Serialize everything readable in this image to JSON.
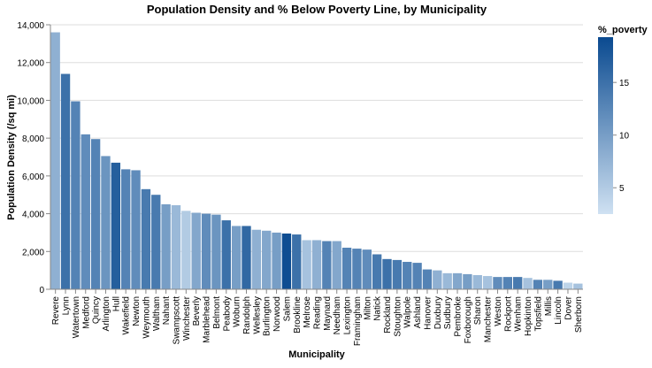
{
  "chart_data": {
    "type": "bar",
    "title": "Population Density and % Below Poverty Line, by Municipality",
    "xlabel": "Municipality",
    "ylabel": "Population Density (/sq mi)",
    "ylim": [
      0,
      14000
    ],
    "yticks": [
      0,
      2000,
      4000,
      6000,
      8000,
      10000,
      12000,
      14000
    ],
    "ytick_labels": [
      "0",
      "2,000",
      "4,000",
      "6,000",
      "8,000",
      "10,000",
      "12,000",
      "14,000"
    ],
    "grid": true,
    "legend": {
      "title": "%_poverty",
      "placement": "top-right",
      "type": "gradient",
      "domain": [
        2.5,
        19.3
      ],
      "ticks": [
        5,
        10,
        15
      ],
      "tick_labels": [
        "5",
        "10",
        "15"
      ],
      "color_low": "#cfe1f2",
      "color_high": "#0a4a90"
    },
    "categories": [
      "Revere",
      "Lynn",
      "Watertown",
      "Medford",
      "Quincy",
      "Arlington",
      "Hull",
      "Wakefield",
      "Newton",
      "Weymouth",
      "Waltham",
      "Nahant",
      "Swampscott",
      "Winchester",
      "Beverly",
      "Marblehead",
      "Belmont",
      "Peabody",
      "Woburn",
      "Randolph",
      "Wellesley",
      "Burlington",
      "Norwood",
      "Salem",
      "Brookline",
      "Melrose",
      "Reading",
      "Maynard",
      "Needham",
      "Lexington",
      "Framingham",
      "Milton",
      "Natick",
      "Rockland",
      "Stoughton",
      "Walpole",
      "Ashland",
      "Hanover",
      "Duxbury",
      "Sudbury",
      "Pembroke",
      "Foxborough",
      "Sharon",
      "Manchester",
      "Weston",
      "Rockport",
      "Wenham",
      "Hopkinton",
      "Topsfield",
      "Millis",
      "Lincoln",
      "Dover",
      "Sherborn"
    ],
    "values": [
      13600,
      11400,
      9950,
      8200,
      7950,
      7050,
      6700,
      6350,
      6300,
      5300,
      5000,
      4500,
      4450,
      4150,
      4050,
      4000,
      3950,
      3650,
      3350,
      3350,
      3150,
      3100,
      3000,
      2950,
      2900,
      2600,
      2600,
      2550,
      2550,
      2200,
      2150,
      2100,
      1850,
      1600,
      1550,
      1450,
      1400,
      1050,
      1000,
      850,
      850,
      800,
      750,
      700,
      650,
      650,
      650,
      600,
      500,
      500,
      450,
      350,
      300
    ],
    "poverty": [
      8,
      15,
      13,
      12,
      13,
      11,
      17,
      13,
      12,
      14,
      14,
      10,
      7,
      5,
      9,
      12,
      11,
      15,
      10,
      16,
      8,
      9,
      10,
      19,
      15,
      6,
      8,
      13,
      9,
      13,
      13,
      12,
      14,
      15,
      14,
      13,
      13,
      13,
      8,
      7,
      9,
      10,
      7,
      6,
      12,
      13,
      14,
      6,
      13,
      10,
      14,
      4,
      6
    ]
  }
}
